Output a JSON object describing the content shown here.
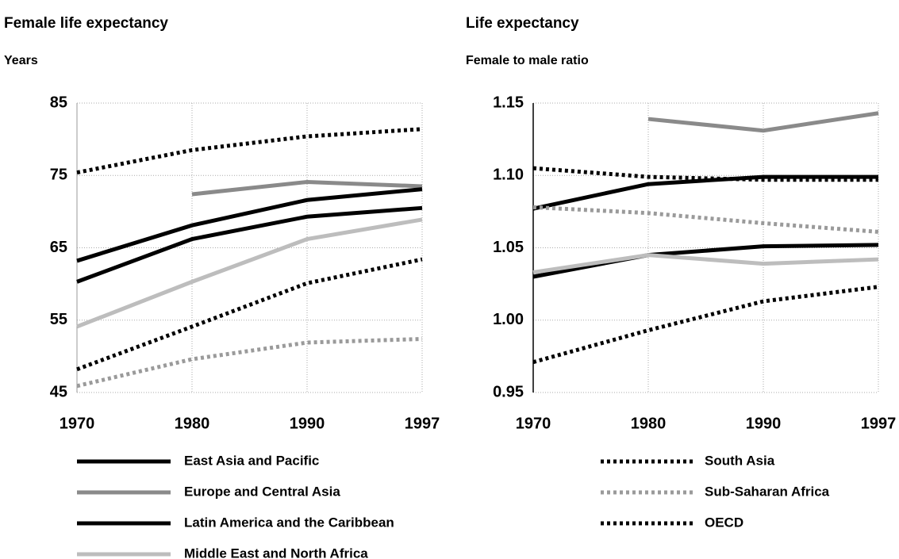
{
  "chart_data": [
    {
      "type": "line",
      "title": "Female life expectancy",
      "subtitle": "Years",
      "categories": [
        "1970",
        "1980",
        "1990",
        "1997"
      ],
      "ylim": [
        45,
        85
      ],
      "yticks": [
        45,
        55,
        65,
        75,
        85
      ],
      "grid": true,
      "series": [
        {
          "name": "East Asia and Pacific",
          "color": "#000000",
          "dash": "solid",
          "values": [
            60.3,
            66.2,
            69.3,
            70.5
          ]
        },
        {
          "name": "Europe and Central Asia",
          "color": "#8a8a8a",
          "dash": "solid",
          "values": [
            null,
            72.4,
            74.1,
            73.5
          ]
        },
        {
          "name": "Latin America and the Caribbean",
          "color": "#000000",
          "dash": "solid",
          "values": [
            63.2,
            68.1,
            71.6,
            73.1
          ]
        },
        {
          "name": "Middle East and North Africa",
          "color": "#bdbdbd",
          "dash": "solid",
          "values": [
            54.1,
            60.3,
            66.2,
            68.9
          ]
        },
        {
          "name": "South Asia",
          "color": "#000000",
          "dash": "dotted",
          "values": [
            48.2,
            54.1,
            60.1,
            63.4
          ]
        },
        {
          "name": "Sub-Saharan Africa",
          "color": "#9a9a9a",
          "dash": "dotted",
          "values": [
            45.9,
            49.6,
            51.9,
            52.4
          ]
        },
        {
          "name": "OECD",
          "color": "#000000",
          "dash": "dotted",
          "values": [
            75.4,
            78.5,
            80.4,
            81.4
          ]
        }
      ]
    },
    {
      "type": "line",
      "title": "Life expectancy",
      "subtitle": "Female to male ratio",
      "categories": [
        "1970",
        "1980",
        "1990",
        "1997"
      ],
      "ylim": [
        0.95,
        1.15
      ],
      "yticks": [
        0.95,
        {
          "value": 1,
          "label": "1.00"
        },
        1.05,
        {
          "value": 1.1,
          "label": "1.10"
        },
        1.15
      ],
      "grid": true,
      "series": [
        {
          "color": "#000000",
          "dash": "solid",
          "values": [
            1.03,
            1.045,
            1.051,
            1.052
          ]
        },
        {
          "color": "#8a8a8a",
          "dash": "solid",
          "values": [
            null,
            1.139,
            1.131,
            1.143
          ]
        },
        {
          "color": "#000000",
          "dash": "solid",
          "values": [
            1.077,
            1.094,
            1.099,
            1.099
          ]
        },
        {
          "color": "#bdbdbd",
          "dash": "solid",
          "values": [
            1.033,
            1.045,
            1.039,
            1.042
          ]
        },
        {
          "color": "#000000",
          "dash": "dotted",
          "values": [
            1.105,
            1.099,
            1.097,
            1.097
          ]
        },
        {
          "color": "#9a9a9a",
          "dash": "dotted",
          "values": [
            1.078,
            1.074,
            1.067,
            1.061
          ]
        },
        {
          "color": "#000000",
          "dash": "dotted",
          "values": [
            0.971,
            0.993,
            1.013,
            1.023
          ]
        }
      ]
    }
  ]
}
